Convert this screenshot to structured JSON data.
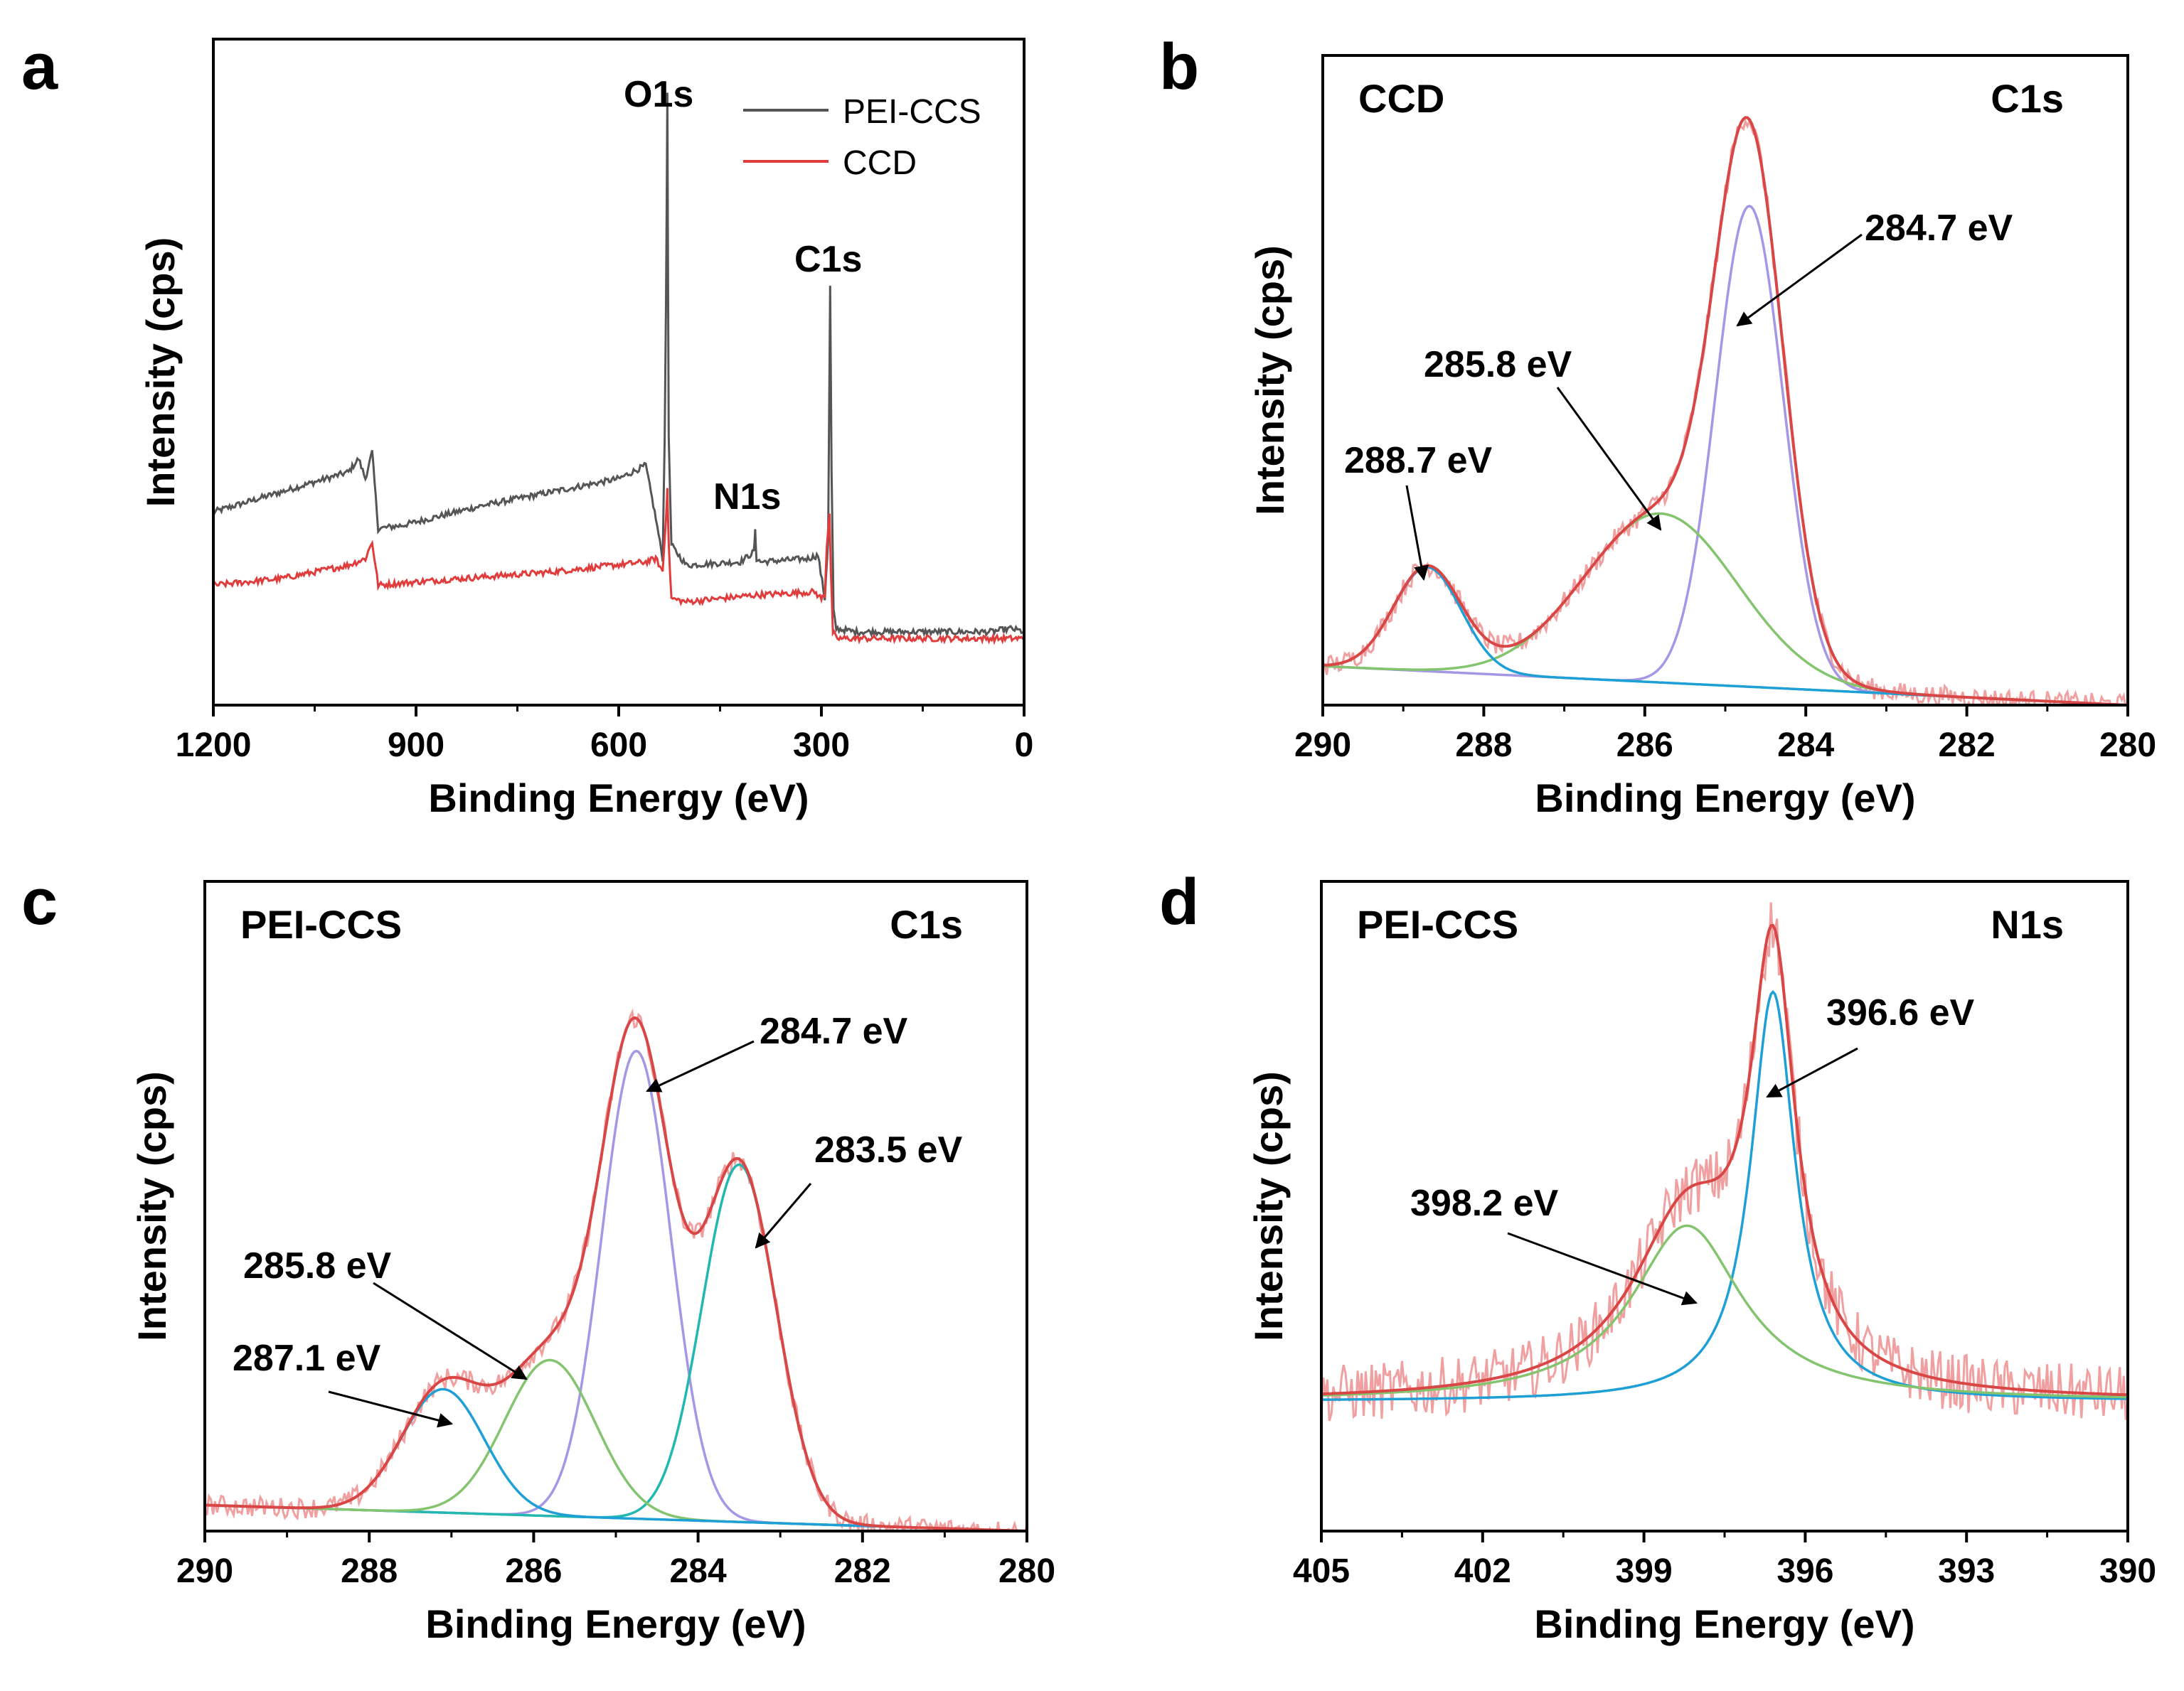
{
  "chart_data": [
    {
      "type": "line",
      "panel_label": "a",
      "xlabel": "Binding Energy (eV)",
      "ylabel": "Intensity (cps)",
      "xlim": [
        1200,
        0
      ],
      "ylim": [
        0,
        100
      ],
      "xticks": [
        1200,
        900,
        600,
        300,
        0
      ],
      "legend": {
        "position": "top-right",
        "entries": [
          {
            "name": "PEI-CCS",
            "color": "#555555"
          },
          {
            "name": "CCD",
            "color": "#e03c3c"
          }
        ]
      },
      "annotations": [
        {
          "text": "O1s",
          "x": 528,
          "y": 91.5
        },
        {
          "text": "N1s",
          "x": 430,
          "y": 29.5
        },
        {
          "text": "C1s",
          "x": 287,
          "y": 63
        }
      ],
      "series": [
        {
          "name": "PEI-CCS",
          "color": "#555555",
          "x": [
            1200,
            1100,
            1000,
            985,
            975,
            965,
            956,
            920,
            800,
            700,
            600,
            560,
            545,
            535,
            532,
            530,
            528,
            526,
            522,
            500,
            420,
            400,
            398,
            396,
            390,
            320,
            305,
            295,
            290,
            287,
            285,
            282,
            278,
            250,
            200,
            150,
            100,
            50,
            20,
            0
          ],
          "y": [
            29,
            32,
            35,
            37,
            34,
            38,
            26.5,
            27,
            30,
            32,
            34,
            36,
            28,
            22,
            40,
            60,
            92,
            40,
            24,
            21,
            21.5,
            23,
            26,
            22,
            21.5,
            22,
            22.5,
            16,
            25,
            63,
            35,
            14,
            11.5,
            11,
            11,
            11,
            11,
            11,
            11.5,
            11
          ]
        },
        {
          "name": "CCD",
          "color": "#e03c3c",
          "x": [
            1200,
            1100,
            1000,
            975,
            965,
            956,
            900,
            700,
            560,
            545,
            535,
            530,
            528,
            526,
            522,
            500,
            400,
            310,
            300,
            295,
            292,
            288,
            286,
            283,
            278,
            200,
            100,
            0
          ],
          "y": [
            18,
            19,
            21,
            22,
            24.5,
            18,
            18.5,
            20,
            21.5,
            22,
            20,
            28,
            33,
            24,
            16,
            15.5,
            16.5,
            17,
            16,
            16.5,
            24,
            29,
            20,
            11,
            10,
            10,
            10,
            10
          ]
        }
      ]
    },
    {
      "type": "line",
      "panel_label": "b",
      "title_left": "CCD",
      "title_right": "C1s",
      "xlabel": "Binding Energy (eV)",
      "ylabel": "Intensity (cps)",
      "xlim": [
        290,
        280
      ],
      "ylim": [
        0,
        100
      ],
      "xticks": [
        290,
        288,
        286,
        284,
        282,
        280
      ],
      "annotations": [
        {
          "text": "284.7 eV",
          "x": 284.7
        },
        {
          "text": "285.8 eV",
          "x": 285.8
        },
        {
          "text": "288.7 eV",
          "x": 288.7
        }
      ],
      "baseline": {
        "y_at_xmin": 6,
        "y_at_xmax": 0
      },
      "components": [
        {
          "center": 284.7,
          "height": 74,
          "sigma": 0.42,
          "color": "#a597e6"
        },
        {
          "center": 285.8,
          "height": 26,
          "sigma": 0.95,
          "color": "#84c46f"
        },
        {
          "center": 288.7,
          "height": 16,
          "sigma": 0.42,
          "color": "#1e9fd6"
        }
      ],
      "envelope_color": "#d94646",
      "raw_color": "#f0a0a0"
    },
    {
      "type": "line",
      "panel_label": "c",
      "title_left": "PEI-CCS",
      "title_right": "C1s",
      "xlabel": "Binding Energy (eV)",
      "ylabel": "Intensity (cps)",
      "xlim": [
        290,
        280
      ],
      "ylim": [
        0,
        100
      ],
      "xticks": [
        290,
        288,
        286,
        284,
        282,
        280
      ],
      "annotations": [
        {
          "text": "284.7 eV",
          "x": 284.7
        },
        {
          "text": "283.5 eV",
          "x": 283.5
        },
        {
          "text": "285.8 eV",
          "x": 285.8
        },
        {
          "text": "287.1 eV",
          "x": 287.1
        }
      ],
      "baseline": {
        "y_at_xmin": 4,
        "y_at_xmax": 0
      },
      "components": [
        {
          "center": 284.75,
          "height": 72,
          "sigma": 0.42,
          "color": "#a597e6"
        },
        {
          "center": 283.5,
          "height": 55,
          "sigma": 0.45,
          "color": "#22b8b0"
        },
        {
          "center": 285.8,
          "height": 24,
          "sigma": 0.55,
          "color": "#84c46f"
        },
        {
          "center": 287.1,
          "height": 19,
          "sigma": 0.5,
          "color": "#1e9fd6"
        }
      ],
      "envelope_color": "#d94646",
      "raw_color": "#f0a0a0"
    },
    {
      "type": "line",
      "panel_label": "d",
      "title_left": "PEI-CCS",
      "title_right": "N1s",
      "xlabel": "Binding Energy (eV)",
      "ylabel": "Intensity (cps)",
      "xlim": [
        405,
        390
      ],
      "ylim": [
        0,
        100
      ],
      "xticks": [
        405,
        402,
        399,
        396,
        393,
        390
      ],
      "annotations": [
        {
          "text": "396.6 eV",
          "x": 396.6
        },
        {
          "text": "398.2 eV",
          "x": 398.2
        }
      ],
      "baseline": {
        "y_at_xmin": 20,
        "y_at_xmax": 20
      },
      "components": [
        {
          "center": 396.6,
          "height": 63,
          "gamma": 0.5,
          "shape": "lorentz",
          "color": "#1e9fd6"
        },
        {
          "center": 398.2,
          "height": 27,
          "gamma": 1.25,
          "shape": "lorentz",
          "color": "#84c46f"
        }
      ],
      "envelope_color": "#d94646",
      "raw_color": "#f0a0a0"
    }
  ]
}
